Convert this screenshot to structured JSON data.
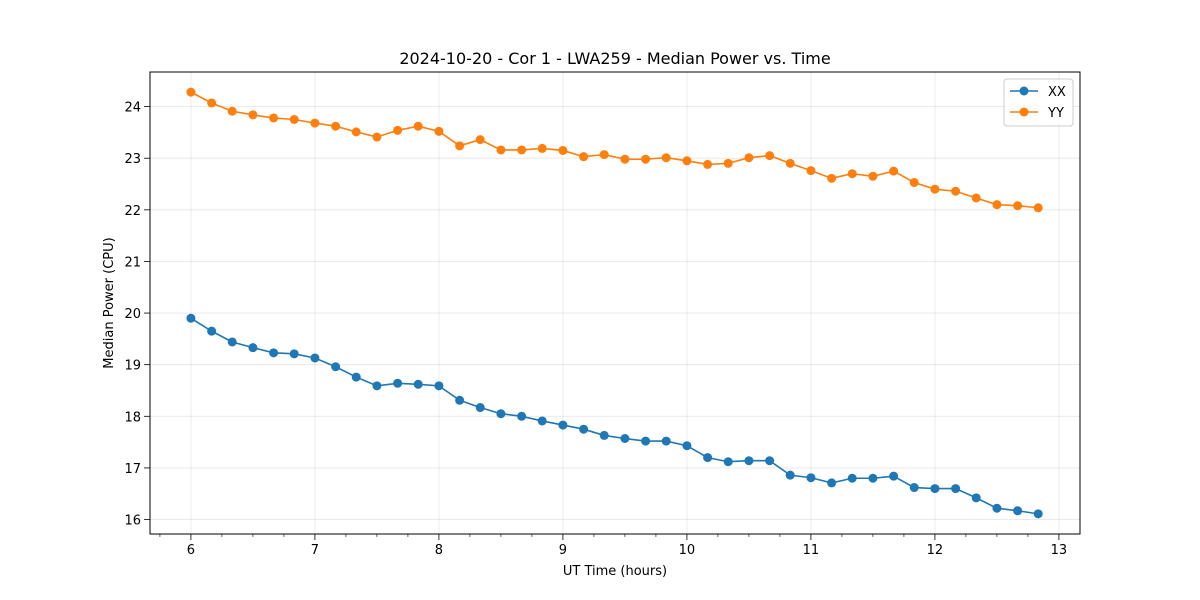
{
  "chart_data": {
    "type": "line",
    "title": "2024-10-20 - Cor 1 - LWA259 - Median Power vs. Time",
    "xlabel": "UT Time (hours)",
    "ylabel": "Median Power (CPU)",
    "xlim": [
      5.67,
      13.17
    ],
    "ylim": [
      15.72,
      24.67
    ],
    "xticks": [
      "6",
      "7",
      "8",
      "9",
      "10",
      "11",
      "12",
      "13"
    ],
    "yticks": [
      "16",
      "17",
      "18",
      "19",
      "20",
      "21",
      "22",
      "23",
      "24"
    ],
    "grid": true,
    "legend_position": "top-right",
    "x": [
      6.0,
      6.167,
      6.333,
      6.5,
      6.667,
      6.833,
      7.0,
      7.167,
      7.333,
      7.5,
      7.667,
      7.833,
      8.0,
      8.167,
      8.333,
      8.5,
      8.667,
      8.833,
      9.0,
      9.167,
      9.333,
      9.5,
      9.667,
      9.833,
      10.0,
      10.167,
      10.333,
      10.5,
      10.667,
      10.833,
      11.0,
      11.167,
      11.333,
      11.5,
      11.667,
      11.833,
      12.0,
      12.167,
      12.333,
      12.5,
      12.667,
      12.833
    ],
    "series": [
      {
        "name": "XX",
        "color": "#1f77b4",
        "values": [
          19.9,
          19.65,
          19.44,
          19.33,
          19.23,
          19.21,
          19.13,
          18.96,
          18.76,
          18.59,
          18.64,
          18.62,
          18.59,
          18.31,
          18.17,
          18.05,
          18.0,
          17.91,
          17.83,
          17.75,
          17.63,
          17.57,
          17.52,
          17.52,
          17.43,
          17.2,
          17.12,
          17.14,
          17.14,
          16.86,
          16.81,
          16.71,
          16.8,
          16.8,
          16.84,
          16.62,
          16.6,
          16.6,
          16.42,
          16.22,
          16.17,
          16.11
        ]
      },
      {
        "name": "YY",
        "color": "#ff7f0e",
        "values": [
          24.28,
          24.07,
          23.91,
          23.84,
          23.78,
          23.75,
          23.68,
          23.62,
          23.51,
          23.41,
          23.54,
          23.62,
          23.52,
          23.24,
          23.36,
          23.16,
          23.16,
          23.19,
          23.15,
          23.03,
          23.07,
          22.98,
          22.98,
          23.01,
          22.95,
          22.88,
          22.9,
          23.01,
          23.05,
          22.9,
          22.76,
          22.61,
          22.7,
          22.65,
          22.75,
          22.53,
          22.4,
          22.36,
          22.23,
          22.1,
          22.08,
          22.04
        ]
      }
    ]
  }
}
